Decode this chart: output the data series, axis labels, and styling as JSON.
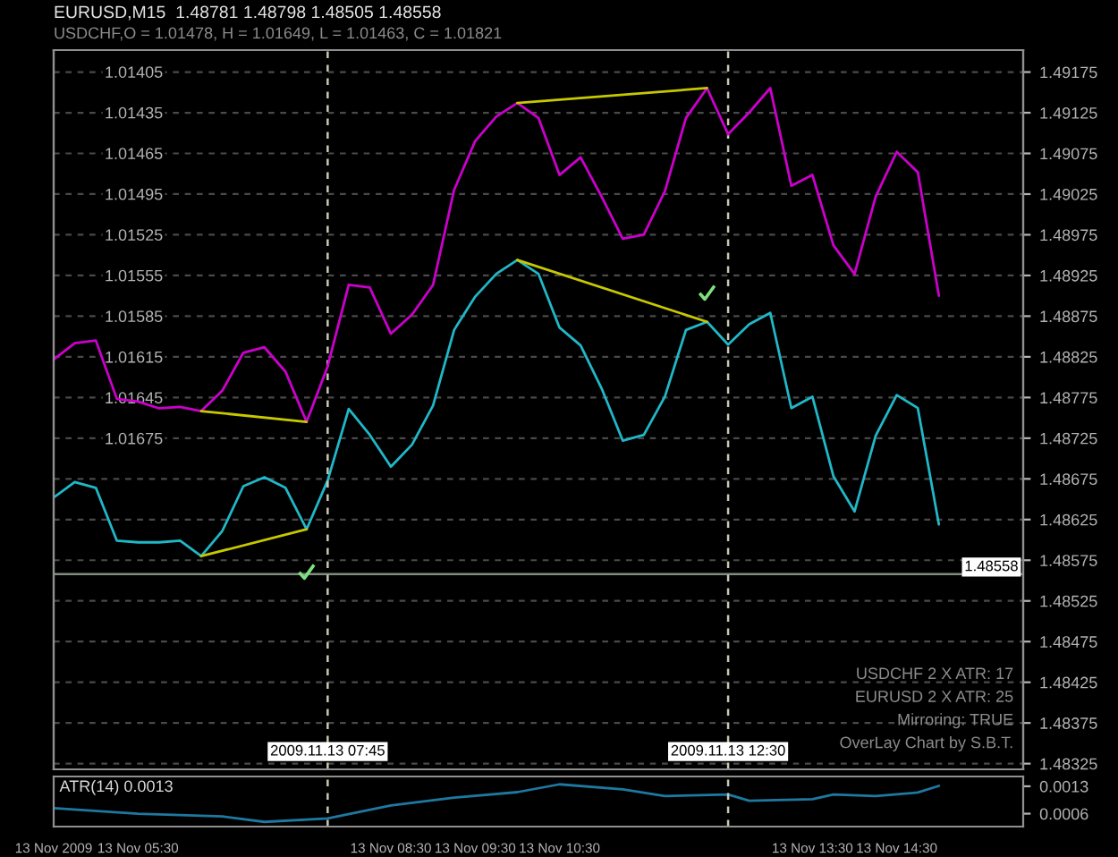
{
  "chart_data": [
    {
      "type": "line",
      "title": "EURUSD,M15  1.48781 1.48798 1.48505 1.48558",
      "subtitle": "USDCHF,O = 1.01478, H = 1.01649, L = 1.01463, C = 1.01821",
      "x": [
        "2009-11-13T04:30",
        "2009-11-13T04:45",
        "2009-11-13T05:00",
        "2009-11-13T05:15",
        "2009-11-13T05:30",
        "2009-11-13T05:45",
        "2009-11-13T06:00",
        "2009-11-13T06:15",
        "2009-11-13T06:30",
        "2009-11-13T06:45",
        "2009-11-13T07:00",
        "2009-11-13T07:15",
        "2009-11-13T07:30",
        "2009-11-13T07:45",
        "2009-11-13T08:00",
        "2009-11-13T08:15",
        "2009-11-13T08:30",
        "2009-11-13T08:45",
        "2009-11-13T09:00",
        "2009-11-13T09:15",
        "2009-11-13T09:30",
        "2009-11-13T09:45",
        "2009-11-13T10:00",
        "2009-11-13T10:15",
        "2009-11-13T10:30",
        "2009-11-13T10:45",
        "2009-11-13T11:00",
        "2009-11-13T11:15",
        "2009-11-13T11:30",
        "2009-11-13T11:45",
        "2009-11-13T12:00",
        "2009-11-13T12:15",
        "2009-11-13T12:30",
        "2009-11-13T12:45",
        "2009-11-13T13:00",
        "2009-11-13T13:15",
        "2009-11-13T13:30",
        "2009-11-13T13:45",
        "2009-11-13T14:00",
        "2009-11-13T14:15",
        "2009-11-13T14:30",
        "2009-11-13T14:45",
        "2009-11-13T15:00"
      ],
      "series": [
        {
          "color": "#cc00cc",
          "axis": "y2",
          "values": [
            1.01617,
            1.01605,
            1.01603,
            1.01646,
            1.01648,
            1.01653,
            1.01652,
            1.01655,
            1.0164,
            1.01612,
            1.01608,
            1.01626,
            1.01663,
            1.01622,
            1.01562,
            1.01564,
            1.01598,
            1.01584,
            1.01562,
            1.01492,
            1.01456,
            1.01438,
            1.01428,
            1.01439,
            1.01481,
            1.01468,
            1.01497,
            1.01528,
            1.01525,
            1.01493,
            1.01439,
            1.01417,
            1.01451,
            1.01435,
            1.01417,
            1.01489,
            1.01481,
            1.01533,
            1.01554,
            1.01497,
            1.01464,
            1.01479,
            1.0157
          ]
        },
        {
          "color": "#20b8c8",
          "values": [
            1.48652,
            1.48671,
            1.48664,
            1.48599,
            1.48597,
            1.48597,
            1.48599,
            1.4858,
            1.48611,
            1.48666,
            1.48677,
            1.48664,
            1.48613,
            1.48673,
            1.48761,
            1.48729,
            1.4869,
            1.48717,
            1.48765,
            1.48858,
            1.48899,
            1.48927,
            1.48944,
            1.48927,
            1.48861,
            1.48839,
            1.48786,
            1.48722,
            1.48729,
            1.48776,
            1.48858,
            1.48868,
            1.4884,
            1.48865,
            1.48879,
            1.48762,
            1.48776,
            1.48678,
            1.48635,
            1.48728,
            1.48778,
            1.48762,
            1.48619
          ]
        },
        {
          "type": "line",
          "color": "#c8c800",
          "axis": "y2",
          "x": [
            "2009-11-13T06:15",
            "2009-11-13T07:30"
          ],
          "values": [
            1.01655,
            1.01663
          ]
        },
        {
          "type": "line",
          "color": "#c8c800",
          "x": [
            "2009-11-13T06:15",
            "2009-11-13T07:30"
          ],
          "values": [
            1.4858,
            1.48613
          ]
        },
        {
          "type": "line",
          "color": "#c8c800",
          "axis": "y2",
          "x": [
            "2009-11-13T10:00",
            "2009-11-13T12:15"
          ],
          "values": [
            1.01428,
            1.01417
          ]
        },
        {
          "type": "line",
          "color": "#c8c800",
          "x": [
            "2009-11-13T10:00",
            "2009-11-13T12:15"
          ],
          "values": [
            1.48944,
            1.48868
          ]
        }
      ],
      "xlim": [
        "2009-11-13T04:30",
        "2009-11-13T16:00"
      ],
      "ylim": [
        1.48318,
        1.49202
      ],
      "yticks": [
        1.49175,
        1.49125,
        1.49075,
        1.49025,
        1.48975,
        1.48925,
        1.48875,
        1.48825,
        1.48775,
        1.48725,
        1.48675,
        1.48625,
        1.48575,
        1.48525,
        1.48475,
        1.48425,
        1.48375,
        1.48325
      ],
      "y2lim": [
        1.01919,
        1.01389
      ],
      "y2ticks": [
        1.01405,
        1.01435,
        1.01465,
        1.01495,
        1.01525,
        1.01555,
        1.01585,
        1.01615,
        1.01645,
        1.01675
      ],
      "tick_labels": "y",
      "grid": "y",
      "ref_lines": [
        {
          "axis": "y",
          "value": 1.48558,
          "label": "1.48558",
          "color": "#808c80",
          "line_style": "solid"
        },
        {
          "axis": "x",
          "value": "2009-11-13T07:45",
          "label": "2009.11.13 07:45",
          "color": "#c8c8b4",
          "line_style": "dashed"
        },
        {
          "axis": "x",
          "value": "2009-11-13T12:30",
          "label": "2009.11.13 12:30",
          "color": "#c8c8b4",
          "line_style": "dashed"
        }
      ],
      "annotations": [
        "USDCHF 2 X ATR: 17",
        "EURUSD 2 X ATR: 25",
        "Mirroring: TRUE",
        "OverLay Chart by S.B.T."
      ]
    },
    {
      "type": "line",
      "title": "ATR(14) 0.0013",
      "series": [
        {
          "color": "#1e78a0",
          "x": [
            "2009-11-13T04:30",
            "2009-11-13T05:30",
            "2009-11-13T06:30",
            "2009-11-13T07:00",
            "2009-11-13T07:45",
            "2009-11-13T08:30",
            "2009-11-13T09:15",
            "2009-11-13T10:00",
            "2009-11-13T10:30",
            "2009-11-13T11:15",
            "2009-11-13T11:45",
            "2009-11-13T12:30",
            "2009-11-13T12:45",
            "2009-11-13T13:30",
            "2009-11-13T13:45",
            "2009-11-13T14:15",
            "2009-11-13T14:45",
            "2009-11-13T15:00"
          ],
          "values": [
            0.00074,
            0.0006,
            0.00053,
            0.00039,
            0.00048,
            0.00081,
            0.00101,
            0.00115,
            0.00135,
            0.00122,
            0.00105,
            0.00109,
            0.00093,
            0.00097,
            0.00109,
            0.00105,
            0.00114,
            0.00131
          ]
        }
      ],
      "xlim": [
        "2009-11-13T04:30",
        "2009-11-13T16:00"
      ],
      "xticks": [
        {
          "value": "2009-11-13T04:30",
          "label": "13 Nov 2009"
        },
        {
          "value": "2009-11-13T05:30",
          "label": "13 Nov 05:30"
        },
        {
          "value": "2009-11-13T08:30",
          "label": "13 Nov 08:30"
        },
        {
          "value": "2009-11-13T09:30",
          "label": "13 Nov 09:30"
        },
        {
          "value": "2009-11-13T10:30",
          "label": "13 Nov 10:30"
        },
        {
          "value": "2009-11-13T13:30",
          "label": "13 Nov 13:30"
        },
        {
          "value": "2009-11-13T14:30",
          "label": "13 Nov 14:30"
        }
      ],
      "ylim": [
        0.00027,
        0.00155
      ],
      "yticks": [
        0.0013,
        0.0006
      ],
      "ref_lines": [
        {
          "axis": "x",
          "value": "2009-11-13T07:45",
          "color": "#c8c8b4",
          "line_style": "dashed"
        },
        {
          "axis": "x",
          "value": "2009-11-13T12:30",
          "color": "#c8c8b4",
          "line_style": "dashed"
        }
      ]
    }
  ]
}
